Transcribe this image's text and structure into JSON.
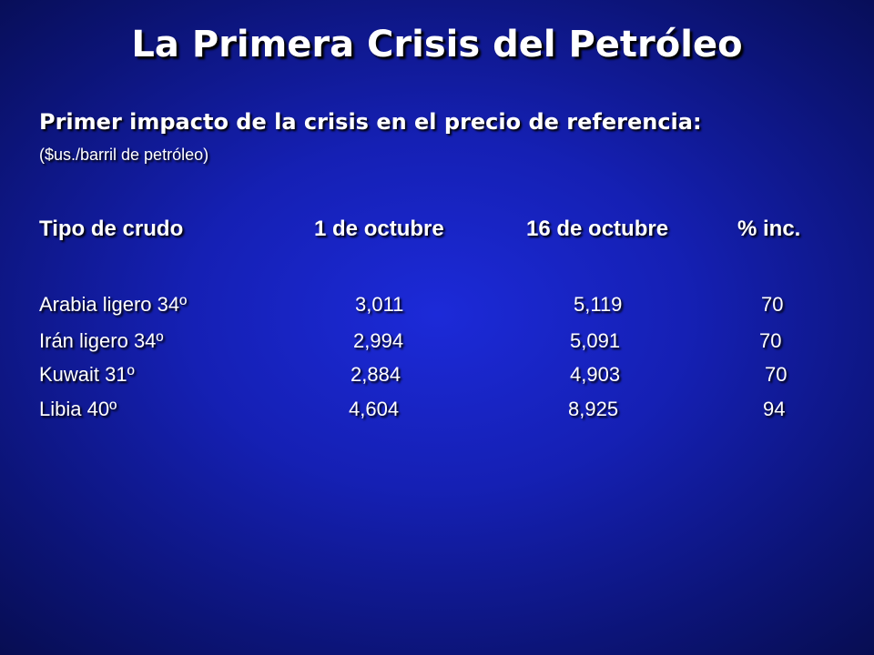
{
  "slide": {
    "title": "La Primera Crisis del Petróleo",
    "subtitle": "Primer impacto de la crisis en el precio de referencia:",
    "unit_note": "($us./barril de petróleo)"
  },
  "table": {
    "headers": [
      "Tipo de crudo",
      "1 de octubre",
      "16 de octubre",
      "% inc."
    ],
    "rows": [
      [
        "Arabia ligero 34º",
        "3,011",
        "5,119",
        "70"
      ],
      [
        "Irán ligero 34º",
        "2,994",
        "5,091",
        "70"
      ],
      [
        "Kuwait 31º",
        "2,884",
        "4,903",
        "70"
      ],
      [
        "Libia 40º",
        "4,604",
        "8,925",
        "94"
      ]
    ]
  },
  "colors": {
    "background_center": "#1c2ad8",
    "background_edge": "#070d52",
    "text": "#ffffff",
    "shadow": "#000000"
  }
}
